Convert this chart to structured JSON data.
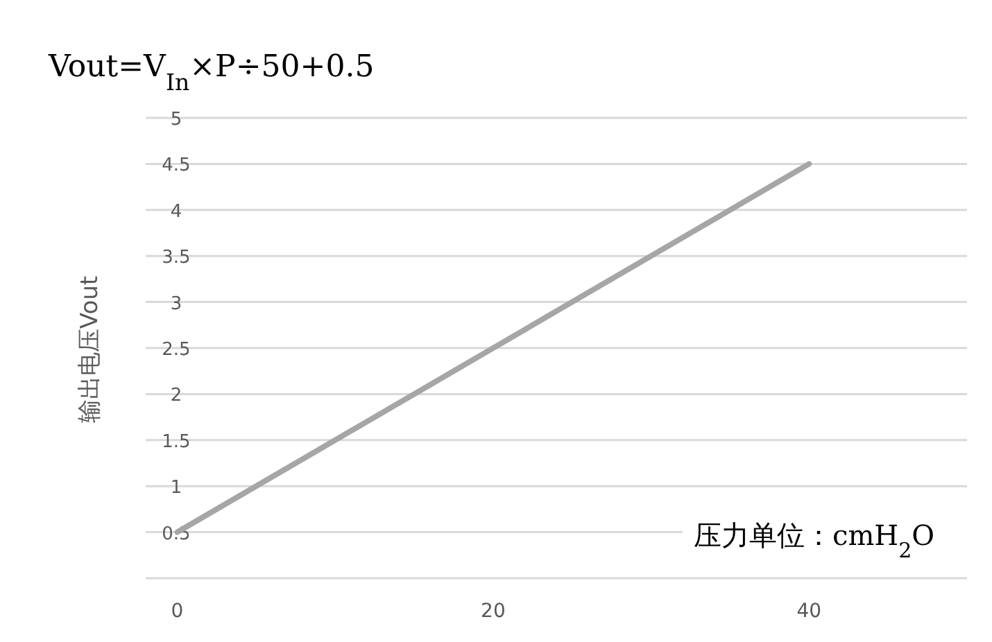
{
  "chart_data": {
    "type": "line",
    "title": "Vout=V$_{In}$×P÷50+0.5",
    "xlabel": "压力单位：cmH$_{2}$O",
    "ylabel": "输出电压Vout",
    "x": [
      0,
      40
    ],
    "series": [
      {
        "color": "#a6a6a6",
        "values": [
          0.5,
          4.5
        ]
      }
    ],
    "xlim": [
      -2,
      50
    ],
    "xticks": [
      0,
      20,
      40
    ],
    "ylim": [
      0,
      5
    ],
    "yticks": [
      {
        "value": 0,
        "label": null
      },
      0.5,
      1,
      1.5,
      2,
      2.5,
      3,
      3.5,
      4,
      4.5,
      5
    ],
    "grid": "y",
    "marker": "none",
    "line_style": "solid"
  }
}
